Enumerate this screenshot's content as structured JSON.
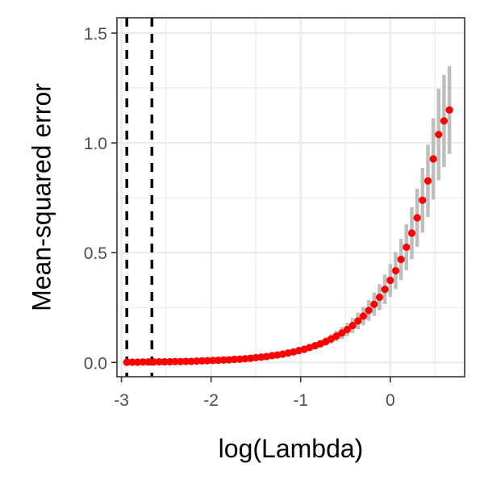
{
  "chart_data": {
    "type": "scatter",
    "xlabel": "log(Lambda)",
    "ylabel": "Mean-squared error",
    "xlim": [
      -3.05,
      0.83
    ],
    "ylim": [
      -0.065,
      1.57
    ],
    "x_ticks": [
      -3,
      -2,
      -1,
      0
    ],
    "x_tick_labels": [
      "-3",
      "-2",
      "-1",
      "0"
    ],
    "y_ticks": [
      0.0,
      0.5,
      1.0,
      1.5
    ],
    "y_tick_labels": [
      "0.0",
      "0.5",
      "1.0",
      "1.5"
    ],
    "grid": true,
    "legend": "none",
    "vlines": [
      -2.94,
      -2.66
    ],
    "series": [
      {
        "x": [
          -2.94,
          -2.88,
          -2.82,
          -2.76,
          -2.7,
          -2.64,
          -2.58,
          -2.52,
          -2.46,
          -2.4,
          -2.34,
          -2.28,
          -2.22,
          -2.16,
          -2.1,
          -2.04,
          -1.98,
          -1.92,
          -1.86,
          -1.8,
          -1.74,
          -1.68,
          -1.62,
          -1.56,
          -1.5,
          -1.44,
          -1.38,
          -1.32,
          -1.26,
          -1.2,
          -1.14,
          -1.08,
          -1.02,
          -0.96,
          -0.9,
          -0.84,
          -0.78,
          -0.72,
          -0.66,
          -0.6,
          -0.54,
          -0.48,
          -0.42,
          -0.36,
          -0.3,
          -0.24,
          -0.18,
          -0.12,
          -0.06,
          0.0,
          0.06,
          0.12,
          0.18,
          0.24,
          0.3,
          0.36,
          0.42,
          0.48,
          0.54,
          0.6,
          0.66
        ],
        "mse": [
          0.001,
          0.001,
          0.001,
          0.002,
          0.002,
          0.002,
          0.003,
          0.003,
          0.003,
          0.004,
          0.004,
          0.005,
          0.005,
          0.006,
          0.007,
          0.008,
          0.009,
          0.01,
          0.011,
          0.012,
          0.014,
          0.015,
          0.017,
          0.019,
          0.022,
          0.024,
          0.027,
          0.031,
          0.034,
          0.038,
          0.043,
          0.048,
          0.054,
          0.06,
          0.068,
          0.076,
          0.085,
          0.095,
          0.107,
          0.12,
          0.134,
          0.15,
          0.168,
          0.189,
          0.211,
          0.237,
          0.265,
          0.297,
          0.333,
          0.374,
          0.418,
          0.469,
          0.525,
          0.589,
          0.659,
          0.739,
          0.827,
          0.927,
          1.038,
          1.1,
          1.15
        ],
        "se": [
          0.0,
          0.0,
          0.0,
          0.0,
          0.0,
          0.0,
          0.001,
          0.001,
          0.001,
          0.001,
          0.001,
          0.001,
          0.001,
          0.001,
          0.001,
          0.002,
          0.002,
          0.002,
          0.002,
          0.002,
          0.003,
          0.003,
          0.003,
          0.004,
          0.004,
          0.005,
          0.005,
          0.006,
          0.007,
          0.008,
          0.009,
          0.01,
          0.011,
          0.012,
          0.014,
          0.015,
          0.017,
          0.019,
          0.021,
          0.024,
          0.027,
          0.03,
          0.034,
          0.038,
          0.042,
          0.047,
          0.053,
          0.059,
          0.067,
          0.075,
          0.084,
          0.094,
          0.105,
          0.118,
          0.132,
          0.148,
          0.165,
          0.185,
          0.208,
          0.21,
          0.2
        ]
      }
    ],
    "point_color": "#ff0000",
    "errorbar_color": "#bebebe",
    "vline_color": "#000000"
  }
}
